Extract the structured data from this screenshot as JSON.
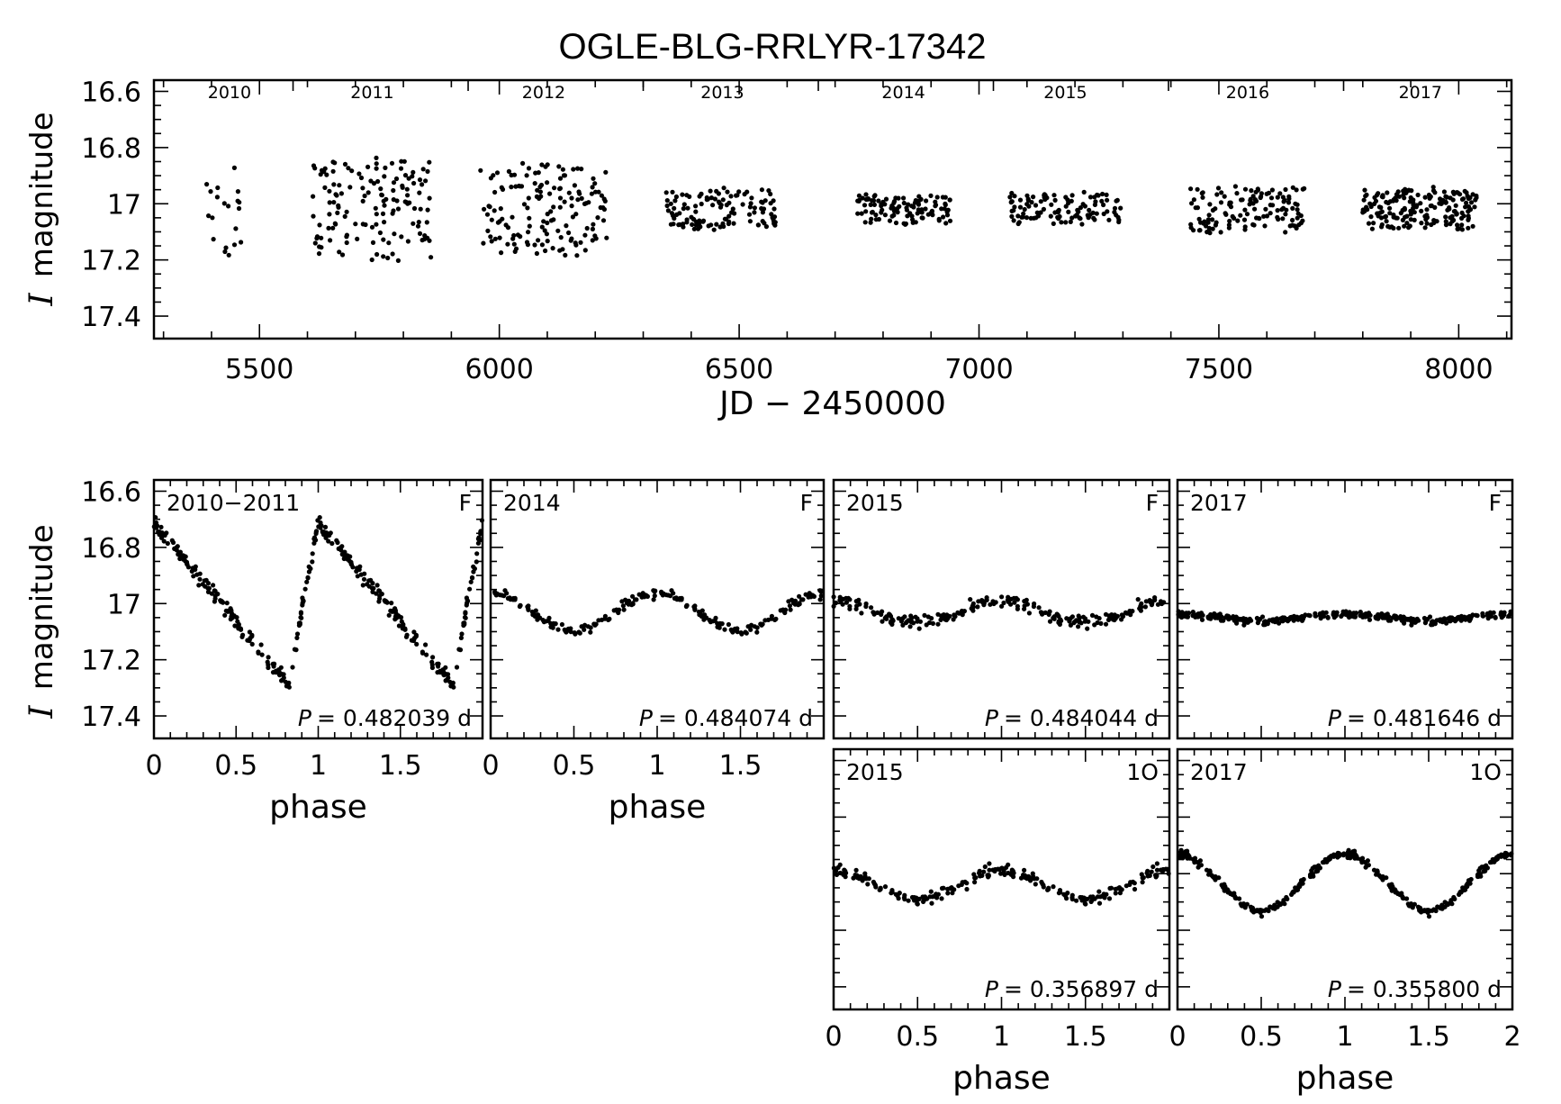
{
  "chart_data": [
    {
      "type": "scatter",
      "title": "OGLE-BLG-RRLYR-17342",
      "xlabel": "JD − 2450000",
      "ylabel_symbol": "I",
      "ylabel": "magnitude",
      "xlim": [
        5280,
        8110
      ],
      "ylim": [
        17.48,
        16.56
      ],
      "y_inverted": true,
      "xticks": [
        5500,
        6000,
        6500,
        7000,
        7500,
        8000
      ],
      "xtick_labels": [
        "5500",
        "6000",
        "6500",
        "7000",
        "7500",
        "8000"
      ],
      "yticks": [
        16.6,
        16.8,
        17,
        17.2,
        17.4
      ],
      "ytick_labels": [
        "16.6",
        "16.8",
        "17",
        "17.2",
        "17.4"
      ],
      "seasons": [
        {
          "label": "2010",
          "start": 5380,
          "end": 5495
        },
        {
          "label": "2011",
          "start": 5610,
          "end": 5860
        },
        {
          "label": "2012",
          "start": 5960,
          "end": 6225
        },
        {
          "label": "2013",
          "start": 6345,
          "end": 6585
        },
        {
          "label": "2014",
          "start": 6745,
          "end": 6940
        },
        {
          "label": "2015",
          "start": 7060,
          "end": 7300
        },
        {
          "label": "2016",
          "start": 7440,
          "end": 7680
        },
        {
          "label": "2017",
          "start": 7800,
          "end": 8040
        }
      ],
      "season_dividers": [
        5570,
        5935,
        6300,
        6665,
        7030,
        7395,
        7760
      ],
      "grid": false,
      "legend": "none"
    },
    {
      "type": "scatter",
      "label": "2010−2011",
      "mode": "F",
      "period_symbol": "P",
      "period": "= 0.482039 d",
      "xlabel": "phase",
      "ylabel_symbol": "I",
      "ylabel": "magnitude",
      "xlim": [
        0,
        2
      ],
      "ylim": [
        17.48,
        16.56
      ],
      "y_inverted": true,
      "mean": 17.0,
      "amplitude": 0.29,
      "shape": "sawtooth",
      "scatter": 0.03,
      "n_points": 170,
      "xticks": [
        0,
        0.5,
        1,
        1.5
      ],
      "xtick_labels": [
        "0",
        "0.5",
        "1",
        "1.5"
      ],
      "yticks": [
        16.6,
        16.8,
        17,
        17.2,
        17.4
      ],
      "ytick_labels": [
        "16.6",
        "16.8",
        "17",
        "17.2",
        "17.4"
      ]
    },
    {
      "type": "scatter",
      "label": "2014",
      "mode": "F",
      "period_symbol": "P",
      "period": "= 0.484074 d",
      "xlabel": "phase",
      "xlim": [
        0,
        2
      ],
      "ylim": [
        17.48,
        16.56
      ],
      "y_inverted": true,
      "mean": 17.03,
      "amplitude": 0.07,
      "shape": "sine",
      "scatter": 0.02,
      "n_points": 110,
      "xticks": [
        0,
        0.5,
        1,
        1.5
      ],
      "xtick_labels": [
        "0",
        "0.5",
        "1",
        "1.5"
      ]
    },
    {
      "type": "scatter",
      "label": "2015",
      "mode": "F",
      "period_symbol": "P",
      "period": "= 0.484044 d",
      "xlim": [
        0,
        2
      ],
      "ylim": [
        17.48,
        16.56
      ],
      "y_inverted": true,
      "mean": 17.03,
      "amplitude": 0.04,
      "shape": "sine",
      "scatter": 0.025,
      "n_points": 110
    },
    {
      "type": "scatter",
      "label": "2017",
      "mode": "F",
      "period_symbol": "P",
      "period": "= 0.481646 d",
      "xlim": [
        0,
        2
      ],
      "ylim": [
        17.48,
        16.56
      ],
      "y_inverted": true,
      "mean": 17.05,
      "amplitude": 0.012,
      "shape": "sine",
      "scatter": 0.015,
      "n_points": 170
    },
    {
      "type": "scatter",
      "label": "2015",
      "mode": "1O",
      "period_symbol": "P",
      "period": "= 0.356897 d",
      "xlabel": "phase",
      "xlim": [
        0,
        2
      ],
      "ylim": [
        17.48,
        16.56
      ],
      "y_inverted": true,
      "mean": 17.04,
      "amplitude": 0.05,
      "shape": "sine",
      "scatter": 0.025,
      "n_points": 110,
      "xticks": [
        0,
        0.5,
        1,
        1.5
      ],
      "xtick_labels": [
        "0",
        "0.5",
        "1",
        "1.5"
      ]
    },
    {
      "type": "scatter",
      "label": "2017",
      "mode": "1O",
      "period_symbol": "P",
      "period": "= 0.355800 d",
      "xlabel": "phase",
      "xlim": [
        0,
        2
      ],
      "ylim": [
        17.48,
        16.56
      ],
      "y_inverted": true,
      "mean": 17.03,
      "amplitude": 0.1,
      "shape": "sine",
      "scatter": 0.015,
      "n_points": 170,
      "xticks": [
        0,
        0.5,
        1,
        1.5,
        2
      ],
      "xtick_labels": [
        "0",
        "0.5",
        "1",
        "1.5",
        "2"
      ]
    }
  ]
}
